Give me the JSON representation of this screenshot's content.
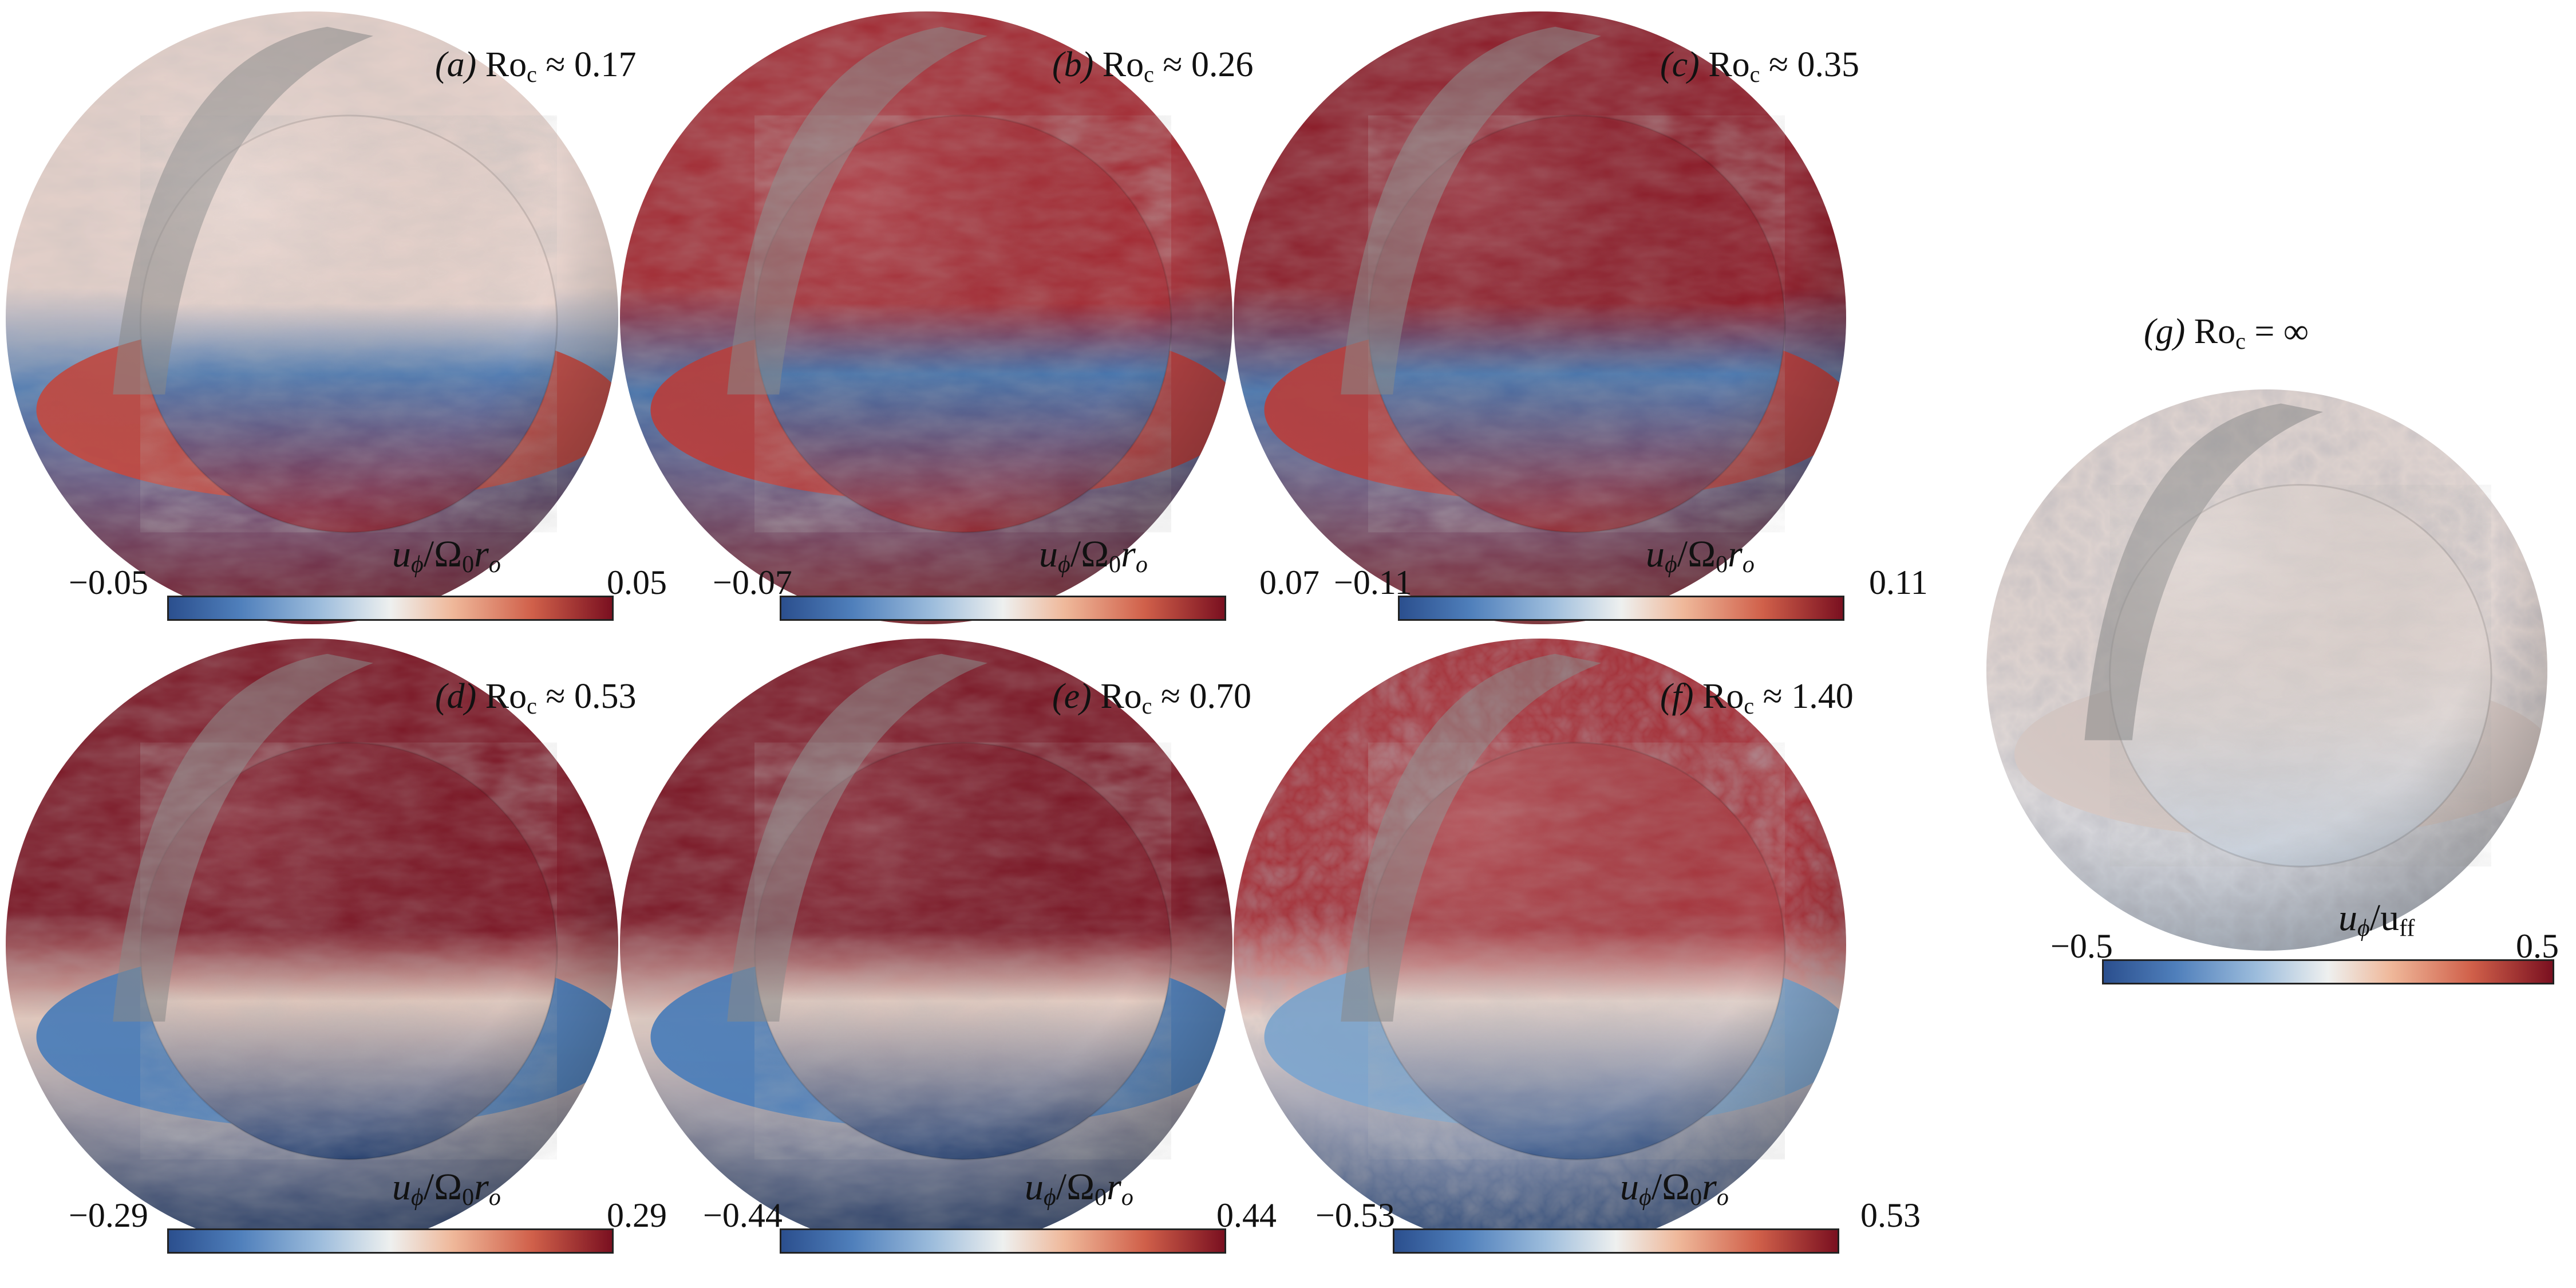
{
  "figure": {
    "panels": [
      {
        "id": "a",
        "letter": "(a)",
        "param": "Ro",
        "param_sub": "c",
        "relation": "≈",
        "value": "0.17",
        "cb_num": "u",
        "cb_num_sub": "ϕ",
        "cb_den": "Ω",
        "cb_den_sub": "0",
        "cb_den_tail": "r",
        "cb_den_tail_sub": "o",
        "cb_min": "−0.05",
        "cb_max": "0.05",
        "top_color": "#ecd6cf",
        "equator_color": "#4a78b2",
        "bottom_color": "#8f2030",
        "rim_color": "#c14c44"
      },
      {
        "id": "b",
        "letter": "(b)",
        "param": "Ro",
        "param_sub": "c",
        "relation": "≈",
        "value": "0.26",
        "cb_num": "u",
        "cb_num_sub": "ϕ",
        "cb_den": "Ω",
        "cb_den_sub": "0",
        "cb_den_tail": "r",
        "cb_den_tail_sub": "o",
        "cb_min": "−0.07",
        "cb_max": "0.07",
        "top_color": "#a4252e",
        "equator_color": "#3f6fab",
        "bottom_color": "#9a2a33",
        "rim_color": "#b7403f"
      },
      {
        "id": "c",
        "letter": "(c)",
        "param": "Ro",
        "param_sub": "c",
        "relation": "≈",
        "value": "0.35",
        "cb_num": "u",
        "cb_num_sub": "ϕ",
        "cb_den": "Ω",
        "cb_den_sub": "0",
        "cb_den_tail": "r",
        "cb_den_tail_sub": "o",
        "cb_min": "−0.11",
        "cb_max": "0.11",
        "top_color": "#8c1623",
        "equator_color": "#4574ae",
        "bottom_color": "#9a2a33",
        "rim_color": "#b7403f"
      },
      {
        "id": "d",
        "letter": "(d)",
        "param": "Ro",
        "param_sub": "c",
        "relation": "≈",
        "value": "0.53",
        "cb_num": "u",
        "cb_num_sub": "ϕ",
        "cb_den": "Ω",
        "cb_den_sub": "0",
        "cb_den_tail": "r",
        "cb_den_tail_sub": "o",
        "cb_min": "−0.29",
        "cb_max": "0.29",
        "top_color": "#7a0f1e",
        "equator_color": "#e6cbbf",
        "bottom_color": "#223f73",
        "rim_color": "#4e80bb"
      },
      {
        "id": "e",
        "letter": "(e)",
        "param": "Ro",
        "param_sub": "c",
        "relation": "≈",
        "value": "0.70",
        "cb_num": "u",
        "cb_num_sub": "ϕ",
        "cb_den": "Ω",
        "cb_den_sub": "0",
        "cb_den_tail": "r",
        "cb_den_tail_sub": "o",
        "cb_min": "−0.44",
        "cb_max": "0.44",
        "top_color": "#7a0f1e",
        "equator_color": "#e8cfc4",
        "bottom_color": "#223f73",
        "rim_color": "#4e80bb"
      },
      {
        "id": "f",
        "letter": "(f)",
        "param": "Ro",
        "param_sub": "c",
        "relation": "≈",
        "value": "1.40",
        "cb_num": "u",
        "cb_num_sub": "ϕ",
        "cb_den": "Ω",
        "cb_den_sub": "0",
        "cb_den_tail": "r",
        "cb_den_tail_sub": "o",
        "cb_min": "−0.53",
        "cb_max": "0.53",
        "top_color": "#a8323a",
        "equator_color": "#e9d6ce",
        "bottom_color": "#36588f",
        "rim_color": "#7fa6cf"
      },
      {
        "id": "g",
        "letter": "(g)",
        "param": "Ro",
        "param_sub": "c",
        "relation": "=",
        "value": "∞",
        "cb_num": "u",
        "cb_num_sub": "ϕ",
        "cb_den": "u",
        "cb_den_sub": "ff",
        "cb_den_tail": "",
        "cb_den_tail_sub": "",
        "cb_min": "−0.5",
        "cb_max": "0.5",
        "top_color": "#e3d7d3",
        "equator_color": "#e1d9d7",
        "bottom_color": "#c9d3e0",
        "rim_color": "#d7c9c5"
      }
    ],
    "colormap": [
      "#2b4f8e",
      "#4f7fbb",
      "#9cbcdc",
      "#eef0ef",
      "#efb89a",
      "#d0604a",
      "#7a1020"
    ]
  }
}
